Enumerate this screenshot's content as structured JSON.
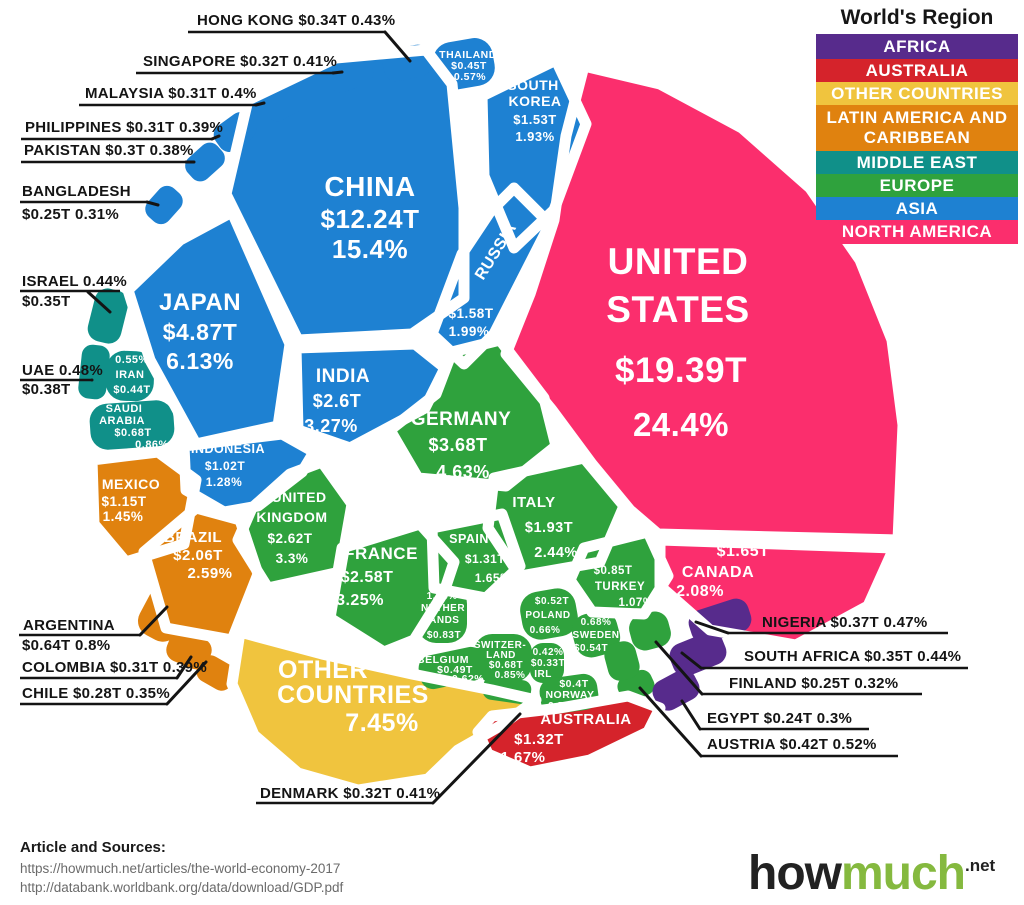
{
  "legend": {
    "title": "World's Region",
    "items": [
      {
        "id": "africa",
        "label": "AFRICA",
        "color": "#572b8c"
      },
      {
        "id": "australia",
        "label": "AUSTRALIA",
        "color": "#d5232b"
      },
      {
        "id": "other",
        "label": "OTHER COUNTRIES",
        "color": "#f0c43e"
      },
      {
        "id": "latin_america",
        "label": "LATIN AMERICA AND CARIBBEAN",
        "color": "#e0820f"
      },
      {
        "id": "middle_east",
        "label": "MIDDLE EAST",
        "color": "#109089"
      },
      {
        "id": "europe",
        "label": "EUROPE",
        "color": "#2fa23d"
      },
      {
        "id": "asia",
        "label": "ASIA",
        "color": "#1e81d2"
      },
      {
        "id": "north_america",
        "label": "NORTH AMERICA",
        "color": "#fb2e6d"
      }
    ]
  },
  "region_colors": {
    "africa": "#572b8c",
    "australia": "#d5232b",
    "other": "#f0c43e",
    "latin_america": "#e0820f",
    "middle_east": "#109089",
    "europe": "#2fa23d",
    "asia": "#1e81d2",
    "north_america": "#fb2e6d"
  },
  "cells": [
    {
      "id": "us",
      "region": "north_america",
      "lines": [
        "UNITED",
        "STATES",
        "$19.39T",
        "24.4%"
      ]
    },
    {
      "id": "china",
      "region": "asia",
      "lines": [
        "CHINA",
        "$12.24T",
        "15.4%"
      ]
    },
    {
      "id": "japan",
      "region": "asia",
      "lines": [
        "JAPAN",
        "$4.87T",
        "6.13%"
      ]
    },
    {
      "id": "south_korea",
      "region": "asia",
      "lines": [
        "SOUTH",
        "KOREA",
        "$1.53T",
        "1.93%"
      ]
    },
    {
      "id": "russia",
      "region": "asia",
      "lines": [
        "RUSSIA",
        "$1.58T",
        "1.99%"
      ]
    },
    {
      "id": "india",
      "region": "asia",
      "lines": [
        "INDIA",
        "$2.6T",
        "3.27%"
      ]
    },
    {
      "id": "indonesia",
      "region": "asia",
      "lines": [
        "INDONESIA",
        "$1.02T",
        "1.28%"
      ]
    },
    {
      "id": "mexico",
      "region": "latin_america",
      "lines": [
        "MEXICO",
        "$1.15T",
        "1.45%"
      ]
    },
    {
      "id": "brazil",
      "region": "latin_america",
      "lines": [
        "BRAZIL",
        "$2.06T",
        "2.59%"
      ]
    },
    {
      "id": "other",
      "region": "other",
      "lines": [
        "OTHER",
        "COUNTRIES",
        "7.45%"
      ]
    },
    {
      "id": "germany",
      "region": "europe",
      "lines": [
        "GERMANY",
        "$3.68T",
        "4.63%"
      ]
    },
    {
      "id": "uk",
      "region": "europe",
      "lines": [
        "UNITED",
        "KINGDOM",
        "$2.62T",
        "3.3%"
      ]
    },
    {
      "id": "france",
      "region": "europe",
      "lines": [
        "FRANCE",
        "$2.58T",
        "3.25%"
      ]
    },
    {
      "id": "spain",
      "region": "europe",
      "lines": [
        "SPAIN",
        "$1.31T",
        "1.65%"
      ]
    },
    {
      "id": "italy",
      "region": "europe",
      "lines": [
        "ITALY",
        "$1.93T",
        "2.44%"
      ]
    },
    {
      "id": "turkey",
      "region": "europe",
      "lines": [
        "$0.85T",
        "TURKEY",
        "1.07%"
      ]
    },
    {
      "id": "canada",
      "region": "north_america",
      "lines": [
        "$1.65T",
        "CANADA",
        "2.08%"
      ]
    },
    {
      "id": "australia",
      "region": "australia",
      "lines": [
        "AUSTRALIA",
        "$1.32T",
        "1.67%"
      ]
    },
    {
      "id": "thailand",
      "region": "asia",
      "lines": [
        "THAILAND",
        "$0.45T",
        "0.57%"
      ]
    },
    {
      "id": "iran",
      "region": "middle_east",
      "lines": [
        "0.55%",
        "IRAN",
        "$0.44T"
      ]
    },
    {
      "id": "saudi",
      "region": "middle_east",
      "lines": [
        "SAUDI",
        "ARABIA",
        "$0.68T",
        "0.86%"
      ]
    },
    {
      "id": "netherlands",
      "region": "europe",
      "lines": [
        "1.04%",
        "NETHER",
        "LANDS",
        "$0.83T"
      ]
    },
    {
      "id": "poland",
      "region": "europe",
      "lines": [
        "$0.52T",
        "POLAND",
        "0.66%"
      ]
    },
    {
      "id": "sweden",
      "region": "europe",
      "lines": [
        "0.68%",
        "SWEDEN",
        "$0.54T"
      ]
    },
    {
      "id": "switzerland",
      "region": "europe",
      "lines": [
        "SWITZER-",
        "LAND",
        "$0.68T",
        "0.85%"
      ]
    },
    {
      "id": "belgium",
      "region": "europe",
      "lines": [
        "BELGIUM",
        "$0.49T",
        "0.62%"
      ]
    },
    {
      "id": "ireland",
      "region": "europe",
      "lines": [
        "0.42%",
        "$0.33T",
        "IRL"
      ]
    },
    {
      "id": "norway",
      "region": "europe",
      "lines": [
        "$0.4T",
        "NORWAY",
        "0.5%"
      ]
    },
    {
      "id": "hong_kong_cell",
      "region": "asia",
      "lines": []
    },
    {
      "id": "singapore_cell",
      "region": "asia",
      "lines": []
    },
    {
      "id": "malaysia_cell",
      "region": "asia",
      "lines": []
    },
    {
      "id": "philippines_cell",
      "region": "asia",
      "lines": []
    },
    {
      "id": "pakistan_cell",
      "region": "asia",
      "lines": []
    },
    {
      "id": "bangladesh_cell",
      "region": "asia",
      "lines": []
    },
    {
      "id": "israel_cell",
      "region": "middle_east",
      "lines": []
    },
    {
      "id": "uae_cell",
      "region": "middle_east",
      "lines": []
    },
    {
      "id": "argentina_cell",
      "region": "latin_america",
      "lines": []
    },
    {
      "id": "colombia_cell",
      "region": "latin_america",
      "lines": []
    },
    {
      "id": "chile_cell",
      "region": "latin_america",
      "lines": []
    },
    {
      "id": "denmark_cell",
      "region": "europe",
      "lines": []
    },
    {
      "id": "finland_cell",
      "region": "europe",
      "lines": []
    },
    {
      "id": "austria_cell",
      "region": "europe",
      "lines": []
    },
    {
      "id": "euro_filler_cell",
      "region": "europe",
      "lines": []
    },
    {
      "id": "nigeria_cell",
      "region": "africa",
      "lines": []
    },
    {
      "id": "south_africa_cell",
      "region": "africa",
      "lines": []
    },
    {
      "id": "egypt_cell",
      "region": "africa",
      "lines": []
    }
  ],
  "callouts": [
    {
      "id": "hong_kong",
      "lines": [
        "HONG KONG  $0.34T  0.43%"
      ]
    },
    {
      "id": "singapore",
      "lines": [
        "SINGAPORE $0.32T  0.41%"
      ]
    },
    {
      "id": "malaysia",
      "lines": [
        "MALAYSIA  $0.31T  0.4%"
      ]
    },
    {
      "id": "philippines",
      "lines": [
        "PHILIPPINES $0.31T  0.39%"
      ]
    },
    {
      "id": "pakistan",
      "lines": [
        "PAKISTAN  $0.3T  0.38%"
      ]
    },
    {
      "id": "bangladesh",
      "lines": [
        "BANGLADESH",
        "$0.25T  0.31%"
      ]
    },
    {
      "id": "israel",
      "lines": [
        "ISRAEL 0.44%",
        "$0.35T"
      ]
    },
    {
      "id": "uae",
      "lines": [
        "UAE  0.48%",
        "$0.38T"
      ]
    },
    {
      "id": "argentina",
      "lines": [
        "ARGENTINA",
        "$0.64T 0.8%"
      ]
    },
    {
      "id": "colombia",
      "lines": [
        "COLOMBIA $0.31T  0.39%"
      ]
    },
    {
      "id": "chile",
      "lines": [
        "CHILE  $0.28T  0.35%"
      ]
    },
    {
      "id": "denmark",
      "lines": [
        "DENMARK $0.32T 0.41%"
      ]
    },
    {
      "id": "nigeria",
      "lines": [
        "NIGERIA $0.37T 0.47%"
      ]
    },
    {
      "id": "south_africa",
      "lines": [
        "SOUTH AFRICA $0.35T 0.44%"
      ]
    },
    {
      "id": "finland",
      "lines": [
        "FINLAND $0.25T  0.32%"
      ]
    },
    {
      "id": "egypt",
      "lines": [
        "EGYPT $0.24T  0.3%"
      ]
    },
    {
      "id": "austria",
      "lines": [
        "AUSTRIA $0.42T  0.52%"
      ]
    }
  ],
  "footer": {
    "sources_title": "Article and Sources:",
    "sources": [
      "https://howmuch.net/articles/the-world-economy-2017",
      "http://databank.worldbank.org/data/download/GDP.pdf"
    ],
    "logo": {
      "part1": "how",
      "part2": "much",
      "suffix": ".net"
    }
  },
  "chart_data": {
    "type": "voronoi_treemap",
    "title": "World's Region",
    "unit": "trillion USD (share of world GDP)",
    "legend_position": "top-right",
    "series": [
      {
        "name": "United States",
        "gdp_trillion_usd": 19.39,
        "share_pct": 24.4,
        "region": "North America"
      },
      {
        "name": "China",
        "gdp_trillion_usd": 12.24,
        "share_pct": 15.4,
        "region": "Asia"
      },
      {
        "name": "Japan",
        "gdp_trillion_usd": 4.87,
        "share_pct": 6.13,
        "region": "Asia"
      },
      {
        "name": "Germany",
        "gdp_trillion_usd": 3.68,
        "share_pct": 4.63,
        "region": "Europe"
      },
      {
        "name": "United Kingdom",
        "gdp_trillion_usd": 2.62,
        "share_pct": 3.3,
        "region": "Europe"
      },
      {
        "name": "India",
        "gdp_trillion_usd": 2.6,
        "share_pct": 3.27,
        "region": "Asia"
      },
      {
        "name": "France",
        "gdp_trillion_usd": 2.58,
        "share_pct": 3.25,
        "region": "Europe"
      },
      {
        "name": "Brazil",
        "gdp_trillion_usd": 2.06,
        "share_pct": 2.59,
        "region": "Latin America and Caribbean"
      },
      {
        "name": "Italy",
        "gdp_trillion_usd": 1.93,
        "share_pct": 2.44,
        "region": "Europe"
      },
      {
        "name": "Canada",
        "gdp_trillion_usd": 1.65,
        "share_pct": 2.08,
        "region": "North America"
      },
      {
        "name": "Russia",
        "gdp_trillion_usd": 1.58,
        "share_pct": 1.99,
        "region": "Asia"
      },
      {
        "name": "South Korea",
        "gdp_trillion_usd": 1.53,
        "share_pct": 1.93,
        "region": "Asia"
      },
      {
        "name": "Australia",
        "gdp_trillion_usd": 1.32,
        "share_pct": 1.67,
        "region": "Australia"
      },
      {
        "name": "Spain",
        "gdp_trillion_usd": 1.31,
        "share_pct": 1.65,
        "region": "Europe"
      },
      {
        "name": "Mexico",
        "gdp_trillion_usd": 1.15,
        "share_pct": 1.45,
        "region": "Latin America and Caribbean"
      },
      {
        "name": "Indonesia",
        "gdp_trillion_usd": 1.02,
        "share_pct": 1.28,
        "region": "Asia"
      },
      {
        "name": "Turkey",
        "gdp_trillion_usd": 0.85,
        "share_pct": 1.07,
        "region": "Europe"
      },
      {
        "name": "Netherlands",
        "gdp_trillion_usd": 0.83,
        "share_pct": 1.04,
        "region": "Europe"
      },
      {
        "name": "Saudi Arabia",
        "gdp_trillion_usd": 0.68,
        "share_pct": 0.86,
        "region": "Middle East"
      },
      {
        "name": "Switzerland",
        "gdp_trillion_usd": 0.68,
        "share_pct": 0.85,
        "region": "Europe"
      },
      {
        "name": "Argentina",
        "gdp_trillion_usd": 0.64,
        "share_pct": 0.8,
        "region": "Latin America and Caribbean"
      },
      {
        "name": "Sweden",
        "gdp_trillion_usd": 0.54,
        "share_pct": 0.68,
        "region": "Europe"
      },
      {
        "name": "Poland",
        "gdp_trillion_usd": 0.52,
        "share_pct": 0.66,
        "region": "Europe"
      },
      {
        "name": "Belgium",
        "gdp_trillion_usd": 0.49,
        "share_pct": 0.62,
        "region": "Europe"
      },
      {
        "name": "Thailand",
        "gdp_trillion_usd": 0.45,
        "share_pct": 0.57,
        "region": "Asia"
      },
      {
        "name": "Iran",
        "gdp_trillion_usd": 0.44,
        "share_pct": 0.55,
        "region": "Middle East"
      },
      {
        "name": "Austria",
        "gdp_trillion_usd": 0.42,
        "share_pct": 0.52,
        "region": "Europe"
      },
      {
        "name": "Norway",
        "gdp_trillion_usd": 0.4,
        "share_pct": 0.5,
        "region": "Europe"
      },
      {
        "name": "UAE",
        "gdp_trillion_usd": 0.38,
        "share_pct": 0.48,
        "region": "Middle East"
      },
      {
        "name": "Nigeria",
        "gdp_trillion_usd": 0.37,
        "share_pct": 0.47,
        "region": "Africa"
      },
      {
        "name": "Israel",
        "gdp_trillion_usd": 0.35,
        "share_pct": 0.44,
        "region": "Middle East"
      },
      {
        "name": "South Africa",
        "gdp_trillion_usd": 0.35,
        "share_pct": 0.44,
        "region": "Africa"
      },
      {
        "name": "Hong Kong",
        "gdp_trillion_usd": 0.34,
        "share_pct": 0.43,
        "region": "Asia"
      },
      {
        "name": "Ireland",
        "gdp_trillion_usd": 0.33,
        "share_pct": 0.42,
        "region": "Europe"
      },
      {
        "name": "Singapore",
        "gdp_trillion_usd": 0.32,
        "share_pct": 0.41,
        "region": "Asia"
      },
      {
        "name": "Denmark",
        "gdp_trillion_usd": 0.32,
        "share_pct": 0.41,
        "region": "Europe"
      },
      {
        "name": "Malaysia",
        "gdp_trillion_usd": 0.31,
        "share_pct": 0.4,
        "region": "Asia"
      },
      {
        "name": "Philippines",
        "gdp_trillion_usd": 0.31,
        "share_pct": 0.39,
        "region": "Asia"
      },
      {
        "name": "Colombia",
        "gdp_trillion_usd": 0.31,
        "share_pct": 0.39,
        "region": "Latin America and Caribbean"
      },
      {
        "name": "Pakistan",
        "gdp_trillion_usd": 0.3,
        "share_pct": 0.38,
        "region": "Asia"
      },
      {
        "name": "Chile",
        "gdp_trillion_usd": 0.28,
        "share_pct": 0.35,
        "region": "Latin America and Caribbean"
      },
      {
        "name": "Finland",
        "gdp_trillion_usd": 0.25,
        "share_pct": 0.32,
        "region": "Europe"
      },
      {
        "name": "Bangladesh",
        "gdp_trillion_usd": 0.25,
        "share_pct": 0.31,
        "region": "Asia"
      },
      {
        "name": "Egypt",
        "gdp_trillion_usd": 0.24,
        "share_pct": 0.3,
        "region": "Africa"
      },
      {
        "name": "Other Countries",
        "gdp_trillion_usd": null,
        "share_pct": 7.45,
        "region": "Other Countries"
      }
    ]
  }
}
